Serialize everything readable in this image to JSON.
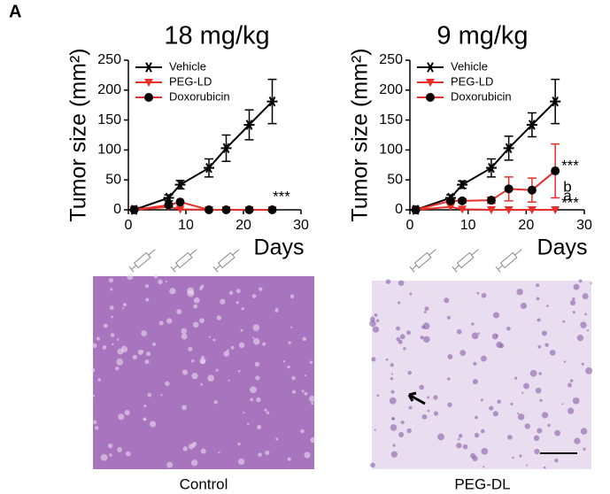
{
  "panel_label": "A",
  "chart_data": [
    {
      "type": "line",
      "title": "18 mg/kg",
      "xlabel": "Days",
      "ylabel": "Tumor size (mm²)",
      "x": [
        1,
        7,
        9,
        14,
        17,
        21,
        25
      ],
      "xlim": [
        0,
        30
      ],
      "xticks": [
        0,
        10,
        20,
        30
      ],
      "ylim": [
        0,
        250
      ],
      "yticks": [
        0,
        50,
        100,
        150,
        200,
        250
      ],
      "legend": "upper left",
      "series": [
        {
          "name": "Vehicle",
          "color": "#000000",
          "marker": "asterisk",
          "values": [
            0,
            20,
            42,
            70,
            103,
            142,
            181
          ],
          "errors": [
            0,
            5,
            7,
            15,
            22,
            25,
            37
          ]
        },
        {
          "name": "PEG-LD",
          "color": "#e8302a",
          "marker": "triangle-down",
          "values": [
            0,
            5,
            1,
            0,
            0,
            0,
            0
          ]
        },
        {
          "name": "Doxorubicin",
          "color": "#000000",
          "line_color": "#e8302a",
          "marker": "circle",
          "values": [
            0,
            8,
            13,
            0,
            0,
            0,
            0
          ]
        }
      ],
      "annotations": [
        "***"
      ]
    },
    {
      "type": "line",
      "title": "9 mg/kg",
      "xlabel": "Days",
      "ylabel": "Tumor size (mm²)",
      "x": [
        1,
        7,
        9,
        14,
        17,
        21,
        25
      ],
      "xlim": [
        0,
        30
      ],
      "xticks": [
        0,
        10,
        20,
        30
      ],
      "ylim": [
        0,
        250
      ],
      "yticks": [
        0,
        50,
        100,
        150,
        200,
        250
      ],
      "legend": "upper left",
      "series": [
        {
          "name": "Vehicle",
          "color": "#000000",
          "marker": "asterisk",
          "values": [
            0,
            20,
            42,
            70,
            103,
            142,
            181
          ],
          "errors": [
            0,
            5,
            6,
            15,
            20,
            20,
            37
          ]
        },
        {
          "name": "PEG-LD",
          "color": "#e8302a",
          "marker": "triangle-down",
          "values": [
            0,
            5,
            1,
            0,
            0,
            0,
            0
          ]
        },
        {
          "name": "Doxorubicin",
          "color": "#000000",
          "line_color": "#e8302a",
          "error_color": "#e8302a",
          "marker": "circle",
          "values": [
            0,
            15,
            15,
            16,
            35,
            33,
            65
          ],
          "errors": [
            0,
            3,
            3,
            5,
            20,
            20,
            45
          ]
        }
      ],
      "annotations": [
        "b",
        "***",
        "a",
        "***"
      ]
    }
  ],
  "images": [
    {
      "caption": "Control"
    },
    {
      "caption": "PEG-DL"
    }
  ]
}
